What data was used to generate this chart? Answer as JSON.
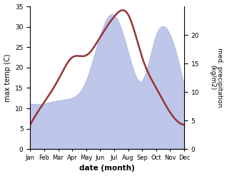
{
  "months": [
    "Jan",
    "Feb",
    "Mar",
    "Apr",
    "May",
    "Jun",
    "Jul",
    "Aug",
    "Sep",
    "Oct",
    "Nov",
    "Dec"
  ],
  "temp": [
    6.0,
    11.5,
    17.0,
    22.5,
    23.0,
    27.5,
    32.5,
    33.0,
    22.5,
    15.0,
    9.0,
    6.0
  ],
  "precip": [
    8.0,
    8.0,
    8.5,
    9.0,
    12.0,
    20.0,
    23.5,
    17.0,
    12.0,
    20.0,
    20.0,
    11.0
  ],
  "temp_ylim": [
    0,
    35
  ],
  "precip_ylim": [
    0,
    25
  ],
  "precip_yticks": [
    0,
    5,
    10,
    15,
    20
  ],
  "temp_yticks": [
    0,
    5,
    10,
    15,
    20,
    25,
    30,
    35
  ],
  "fill_color": "#b3bce6",
  "fill_alpha": 0.85,
  "line_color": "#993333",
  "line_width": 1.8,
  "xlabel": "date (month)",
  "ylabel_left": "max temp (C)",
  "ylabel_right": "med. precipitation\n(kg/m2)",
  "bg_color": "#ffffff"
}
